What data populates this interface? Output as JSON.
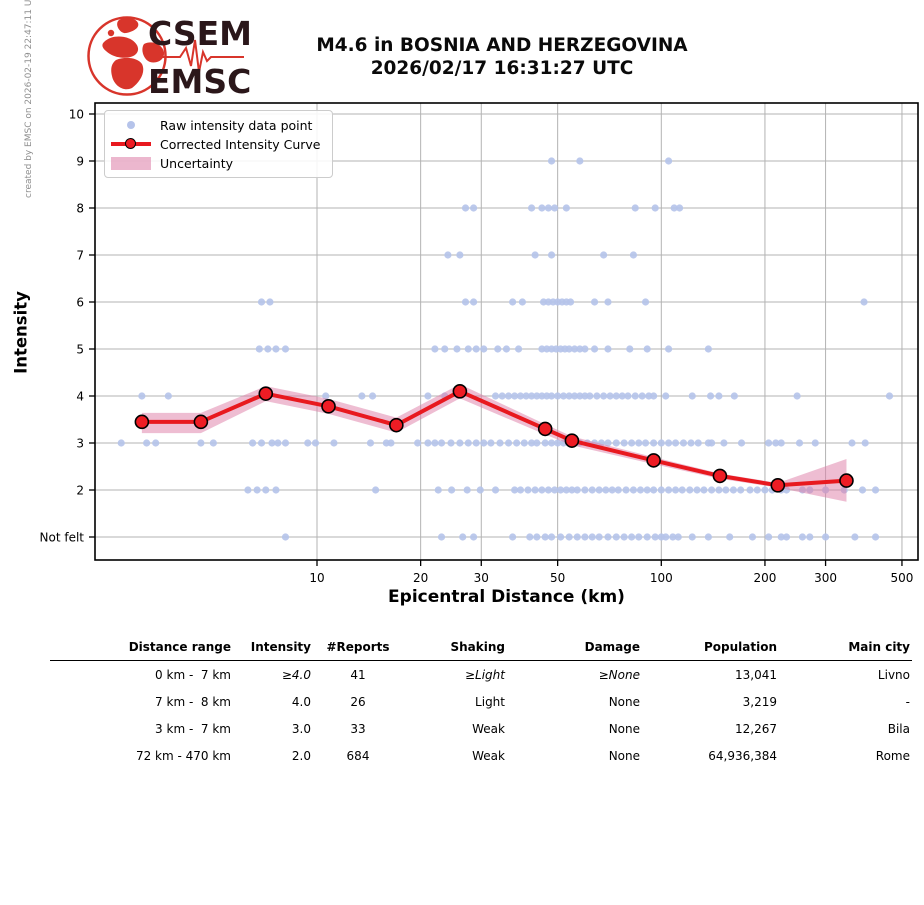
{
  "header": {
    "logo": {
      "line1": "CSEM",
      "line2": "EMSC"
    },
    "title_line1": "M4.6 in BOSNIA AND HERZEGOVINA",
    "title_line2": "2026/02/17 16:31:27 UTC",
    "created_by": "created by EMSC on 2026-02-19 22:47:11 UTC"
  },
  "chart_data": {
    "type": "scatter",
    "xlabel": "Epicentral Distance (km)",
    "ylabel": "Intensity",
    "x_scale": "log",
    "xlim_km": [
      2.3,
      558
    ],
    "grid": true,
    "legend_position": "upper-left",
    "x_ticks": [
      10,
      20,
      30,
      50,
      100,
      200,
      300,
      500
    ],
    "y_ticks": [
      {
        "label": "10",
        "value": 10
      },
      {
        "label": "9",
        "value": 9
      },
      {
        "label": "8",
        "value": 8
      },
      {
        "label": "7",
        "value": 7
      },
      {
        "label": "6",
        "value": 6
      },
      {
        "label": "5",
        "value": 5
      },
      {
        "label": "4",
        "value": 4
      },
      {
        "label": "3",
        "value": 3
      },
      {
        "label": "2",
        "value": 2
      },
      {
        "label": "Not felt",
        "value": 1
      }
    ],
    "legend": [
      "Raw intensity data point",
      "Corrected Intensity Curve",
      "Uncertainty"
    ],
    "raw_points": [
      {
        "intensity": 9,
        "distances_km": [
          48,
          58,
          105
        ]
      },
      {
        "intensity": 8,
        "distances_km": [
          27,
          28.5,
          42,
          45,
          47,
          49,
          53,
          84,
          96,
          109,
          113
        ]
      },
      {
        "intensity": 7,
        "distances_km": [
          24,
          26,
          43,
          48,
          68,
          83
        ]
      },
      {
        "intensity": 6,
        "distances_km": [
          6.9,
          7.3,
          27,
          28.5,
          37,
          39.5,
          45.5,
          47,
          48.5,
          50,
          51.5,
          53,
          54.5,
          64,
          70,
          90,
          388
        ]
      },
      {
        "intensity": 5,
        "distances_km": [
          6.8,
          7.2,
          7.6,
          8.1,
          22,
          23.5,
          25.5,
          27.5,
          29,
          30.5,
          33.5,
          35.5,
          38.5,
          45,
          46.5,
          48,
          49.5,
          51,
          52.5,
          54,
          56,
          58,
          60,
          64,
          70,
          81,
          91,
          105,
          137
        ]
      },
      {
        "intensity": 4,
        "distances_km": [
          3.1,
          3.7,
          10.6,
          13.5,
          14.5,
          21,
          23.5,
          33,
          34.5,
          36,
          37.5,
          39,
          40.5,
          42,
          43.5,
          45,
          46.5,
          48,
          50,
          52,
          54,
          56,
          58,
          60,
          62,
          65,
          68,
          71,
          74,
          77,
          80,
          84,
          88,
          92,
          95,
          103,
          123,
          139,
          147,
          163,
          248,
          460
        ]
      },
      {
        "intensity": 3,
        "distances_km": [
          2.7,
          3.2,
          3.4,
          4.6,
          5.0,
          6.5,
          6.9,
          7.4,
          7.7,
          8.1,
          9.4,
          9.9,
          11.2,
          14.3,
          15.9,
          16.4,
          19.6,
          21,
          22,
          23,
          24.5,
          26,
          27.5,
          29,
          30.5,
          32,
          34,
          36,
          38,
          40,
          42,
          43.5,
          46,
          48,
          50,
          52,
          55,
          58,
          61,
          64,
          67,
          70,
          74,
          78,
          82,
          86,
          90,
          95,
          100,
          105,
          110,
          116,
          122,
          128,
          137,
          140,
          152,
          171,
          205,
          215,
          223,
          252,
          280,
          358,
          391
        ]
      },
      {
        "intensity": 2,
        "distances_km": [
          6.3,
          6.7,
          7.1,
          7.6,
          14.8,
          22.5,
          24.6,
          27.3,
          29.8,
          33,
          37.5,
          39,
          41,
          43,
          45,
          47,
          49,
          51,
          53,
          55,
          57,
          60,
          63,
          66,
          69,
          72,
          75,
          79,
          83,
          87,
          91,
          95,
          100,
          105,
          110,
          115,
          121,
          127,
          133,
          140,
          147,
          154,
          162,
          170,
          181,
          190,
          200,
          210,
          223,
          231,
          257,
          270,
          300,
          340,
          384,
          419
        ]
      },
      {
        "intensity": 1,
        "distances_km": [
          8.1,
          23,
          26.5,
          28.5,
          37,
          41.5,
          43.5,
          46,
          48,
          51,
          54,
          57,
          60,
          63,
          66,
          70,
          74,
          78,
          82,
          86,
          91,
          96,
          100,
          103,
          108,
          112,
          123,
          137,
          158,
          184,
          205,
          223,
          231,
          257,
          270,
          300,
          365,
          419
        ]
      }
    ],
    "corrected_curve": [
      {
        "distance_km": 3.1,
        "intensity": 3.45
      },
      {
        "distance_km": 4.6,
        "intensity": 3.45
      },
      {
        "distance_km": 7.1,
        "intensity": 4.05
      },
      {
        "distance_km": 10.8,
        "intensity": 3.78
      },
      {
        "distance_km": 17,
        "intensity": 3.38
      },
      {
        "distance_km": 26,
        "intensity": 4.1
      },
      {
        "distance_km": 46,
        "intensity": 3.3
      },
      {
        "distance_km": 55,
        "intensity": 3.05
      },
      {
        "distance_km": 95,
        "intensity": 2.63
      },
      {
        "distance_km": 148,
        "intensity": 2.3
      },
      {
        "distance_km": 218,
        "intensity": 2.1
      },
      {
        "distance_km": 345,
        "intensity": 2.2
      }
    ],
    "uncertainty_band": {
      "upper_offset": [
        0.19,
        0.19,
        0.16,
        0.16,
        0.16,
        0.15,
        0.1,
        0.09,
        0.07,
        0.05,
        0.05,
        0.46
      ],
      "lower_offset": [
        0.24,
        0.24,
        0.16,
        0.16,
        0.16,
        0.15,
        0.12,
        0.1,
        0.08,
        0.06,
        0.05,
        0.45
      ]
    },
    "colors": {
      "raw_point": "#b5c3ea",
      "curve": "#e8191f",
      "marker": "#ee1c24",
      "band": "#dd7ca6",
      "grid": "#b3b3b3",
      "axis": "#000000",
      "logo_red": "#d8352b",
      "logo_text": "#2b171a"
    }
  },
  "table": {
    "headers": [
      "Distance range",
      "Intensity",
      "#Reports",
      "Shaking",
      "Damage",
      "Population",
      "Main city"
    ],
    "rows": [
      {
        "cells": [
          "0 km -  7 km",
          "≥4.0",
          "41",
          "≥Light",
          "≥None",
          "13,041",
          "Livno"
        ],
        "italic_cols": [
          1,
          3,
          4
        ]
      },
      {
        "cells": [
          "7 km -  8 km",
          "4.0",
          "26",
          "Light",
          "None",
          "3,219",
          "-"
        ],
        "italic_cols": []
      },
      {
        "cells": [
          "3 km -  7 km",
          "3.0",
          "33",
          "Weak",
          "None",
          "12,267",
          "Bila"
        ],
        "italic_cols": []
      },
      {
        "cells": [
          "72 km - 470 km",
          "2.0",
          "684",
          "Weak",
          "None",
          "64,936,384",
          "Rome"
        ],
        "italic_cols": []
      }
    ]
  }
}
